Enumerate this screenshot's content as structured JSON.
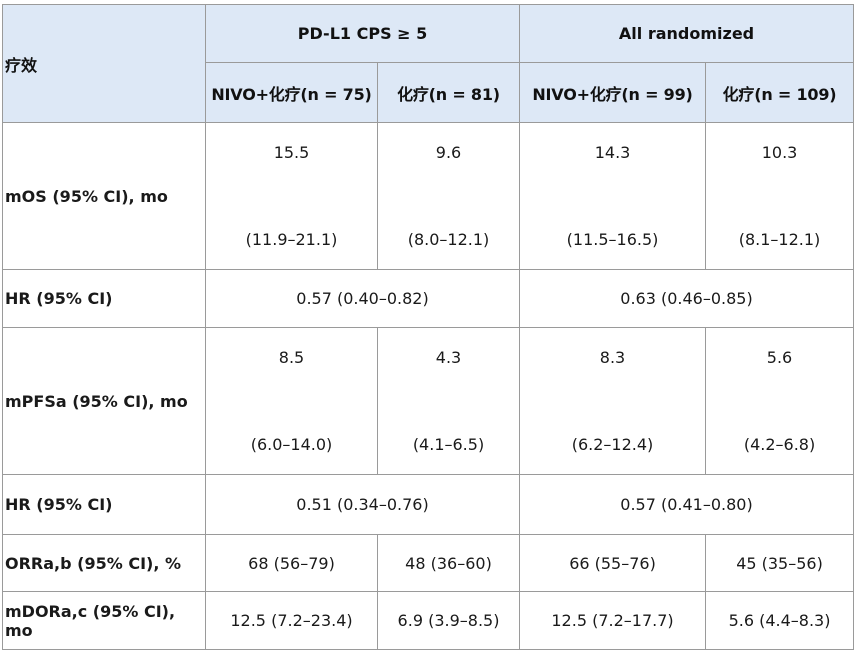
{
  "header": {
    "row_label": "疗效",
    "group1": "PD-L1 CPS ≥ 5",
    "group2": "All randomized",
    "sub": [
      "NIVO+化疗(n = 75)",
      "化疗(n = 81)",
      "NIVO+化疗(n = 99)",
      "化疗(n = 109)"
    ]
  },
  "rows": {
    "mos": {
      "label": "mOS (95% CI), mo",
      "values": [
        "15.5",
        "9.6",
        "14.3",
        "10.3"
      ],
      "cis": [
        "(11.9–21.1)",
        "(8.0–12.1)",
        "(11.5–16.5)",
        "(8.1–12.1)"
      ]
    },
    "hr_os": {
      "label": "HR (95% CI)",
      "values": [
        "0.57 (0.40–0.82)",
        "0.63 (0.46–0.85)"
      ]
    },
    "mpfs": {
      "label": "mPFSa (95% CI), mo",
      "values": [
        "8.5",
        "4.3",
        "8.3",
        "5.6"
      ],
      "cis": [
        "(6.0–14.0)",
        "(4.1–6.5)",
        "(6.2–12.4)",
        "(4.2–6.8)"
      ]
    },
    "hr_pfs": {
      "label": "HR (95% CI)",
      "values": [
        "0.51 (0.34–0.76)",
        "0.57 (0.41–0.80)"
      ]
    },
    "orr": {
      "label": "ORRa,b (95% CI), %",
      "values": [
        "68 (56–79)",
        "48 (36–60)",
        "66 (55–76)",
        "45 (35–56)"
      ]
    },
    "mdor": {
      "label": "mDORa,c (95% CI), mo",
      "values": [
        "12.5 (7.2–23.4)",
        "6.9 (3.9–8.5)",
        "12.5 (7.2–17.7)",
        "5.6 (4.4–8.3)"
      ]
    }
  }
}
